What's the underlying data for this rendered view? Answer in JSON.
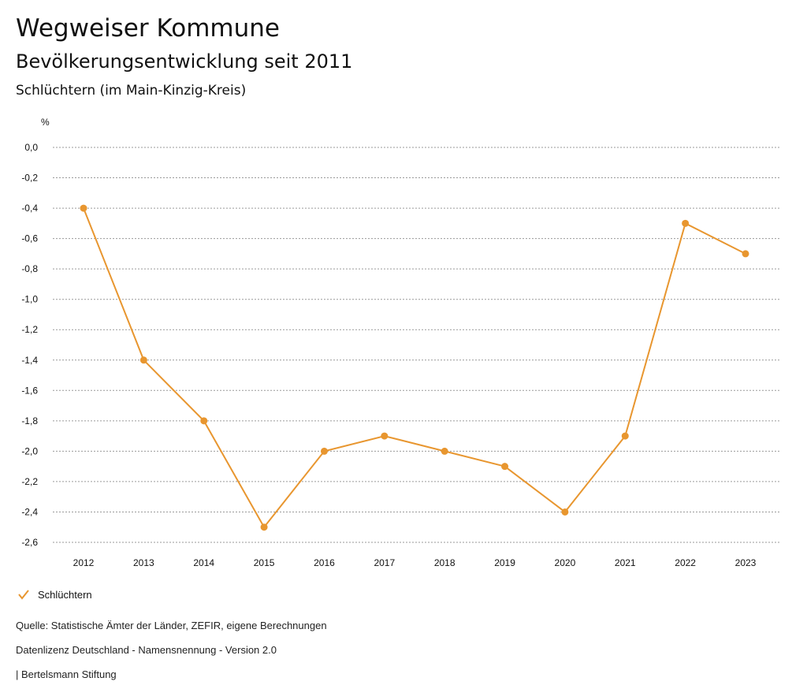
{
  "header": {
    "title": "Wegweiser Kommune",
    "subtitle": "Bevölkerungsentwicklung seit 2011",
    "region": "Schlüchtern (im Main-Kinzig-Kreis)"
  },
  "footer": {
    "source": "Quelle: Statistische Ämter der Länder, ZEFIR, eigene Berechnungen",
    "license": "Datenlizenz Deutschland - Namensnennung - Version 2.0",
    "publisher": "| Bertelsmann Stiftung"
  },
  "chart_data": {
    "type": "line",
    "title": "Bevölkerungsentwicklung seit 2011",
    "ylabel": "%",
    "xlabel": "",
    "categories": [
      "2012",
      "2013",
      "2014",
      "2015",
      "2016",
      "2017",
      "2018",
      "2019",
      "2020",
      "2021",
      "2022",
      "2023"
    ],
    "series": [
      {
        "name": "Schlüchtern",
        "color": "#e8962f",
        "values": [
          -0.4,
          -1.4,
          -1.8,
          -2.5,
          -2.0,
          -1.9,
          -2.0,
          -2.1,
          -2.4,
          -1.9,
          -0.5,
          -0.7
        ]
      }
    ],
    "ylim": [
      -2.6,
      0.0
    ],
    "yticks": [
      "0,0",
      "-0,2",
      "-0,4",
      "-0,6",
      "-0,8",
      "-1,0",
      "-1,2",
      "-1,4",
      "-1,6",
      "-1,8",
      "-2,0",
      "-2,2",
      "-2,4",
      "-2,6"
    ],
    "grid": true,
    "legend": "bottom-left"
  }
}
